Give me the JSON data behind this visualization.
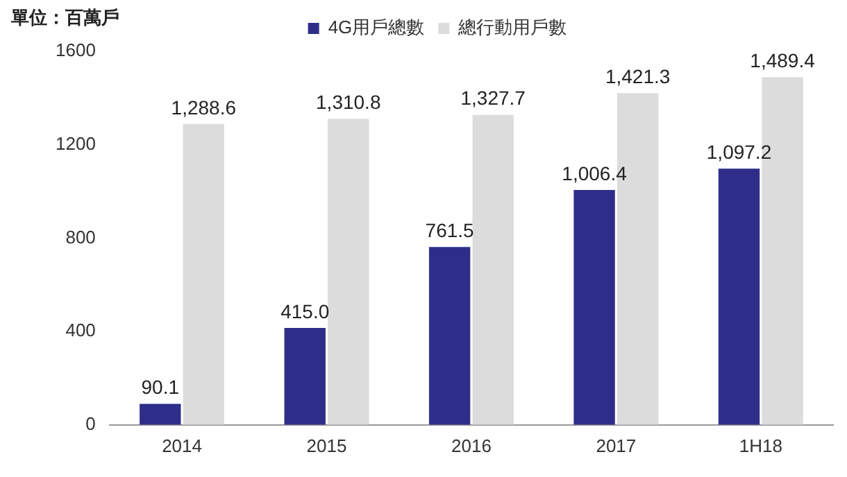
{
  "chart_data": {
    "type": "bar",
    "ylabel": "單位：百萬戶",
    "categories": [
      "2014",
      "2015",
      "2016",
      "2017",
      "1H18"
    ],
    "series": [
      {
        "name": "4G用戶總數",
        "color": "#2e2e8a",
        "values": [
          90.1,
          415.0,
          761.5,
          1006.4,
          1097.2
        ],
        "value_labels": [
          "90.1",
          "415.0",
          "761.5",
          "1,006.4",
          "1,097.2"
        ]
      },
      {
        "name": "總行動用戶數",
        "color": "#dcdcdc",
        "values": [
          1288.6,
          1310.8,
          1327.7,
          1421.3,
          1489.4
        ],
        "value_labels": [
          "1,288.6",
          "1,310.8",
          "1,327.7",
          "1,421.3",
          "1,489.4"
        ]
      }
    ],
    "ylim": [
      0,
      1600
    ],
    "yticks": [
      0,
      400,
      800,
      1200,
      1600
    ],
    "grid": false,
    "legend": "top"
  }
}
